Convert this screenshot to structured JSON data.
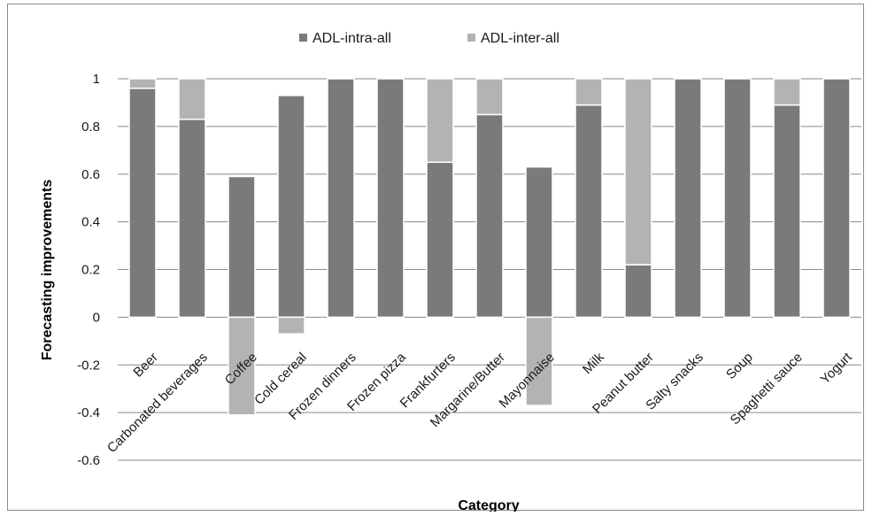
{
  "chart_data": {
    "type": "bar",
    "stacked": true,
    "title": "",
    "xlabel": "Category",
    "ylabel": "Forecasting improvements",
    "ylim": [
      -0.6,
      1
    ],
    "yticks": [
      -0.6,
      -0.4,
      -0.2,
      0,
      0.2,
      0.4,
      0.6,
      0.8,
      1
    ],
    "ytick_labels": [
      "-0.6",
      "-0.4",
      "-0.2",
      "0",
      "0.2",
      "0.4",
      "0.6",
      "0.8",
      "1"
    ],
    "grid": true,
    "legend_position": "top",
    "categories": [
      "Beer",
      "Carbonated beverages",
      "Coffee",
      "Cold cereal",
      "Frozen dinners",
      "Frozen pizza",
      "Frankfurters",
      "Margarine/Butter",
      "Mayonnaise",
      "Milk",
      "Peanut butter",
      "Salty snacks",
      "Soup",
      "Spaghetti sauce",
      "Yogurt"
    ],
    "series": [
      {
        "name": "ADL-intra-all",
        "color": "#7a7a7a",
        "values": [
          0.96,
          0.83,
          0.59,
          0.93,
          1.0,
          1.0,
          0.65,
          0.85,
          0.63,
          0.89,
          0.22,
          1.0,
          1.0,
          0.89,
          1.0
        ]
      },
      {
        "name": "ADL-inter-all",
        "color": "#b3b3b3",
        "values": [
          0.04,
          0.17,
          -0.41,
          -0.07,
          0.0,
          0.0,
          0.35,
          0.15,
          -0.37,
          0.11,
          0.78,
          0.0,
          0.0,
          0.11,
          0.0
        ]
      }
    ]
  }
}
